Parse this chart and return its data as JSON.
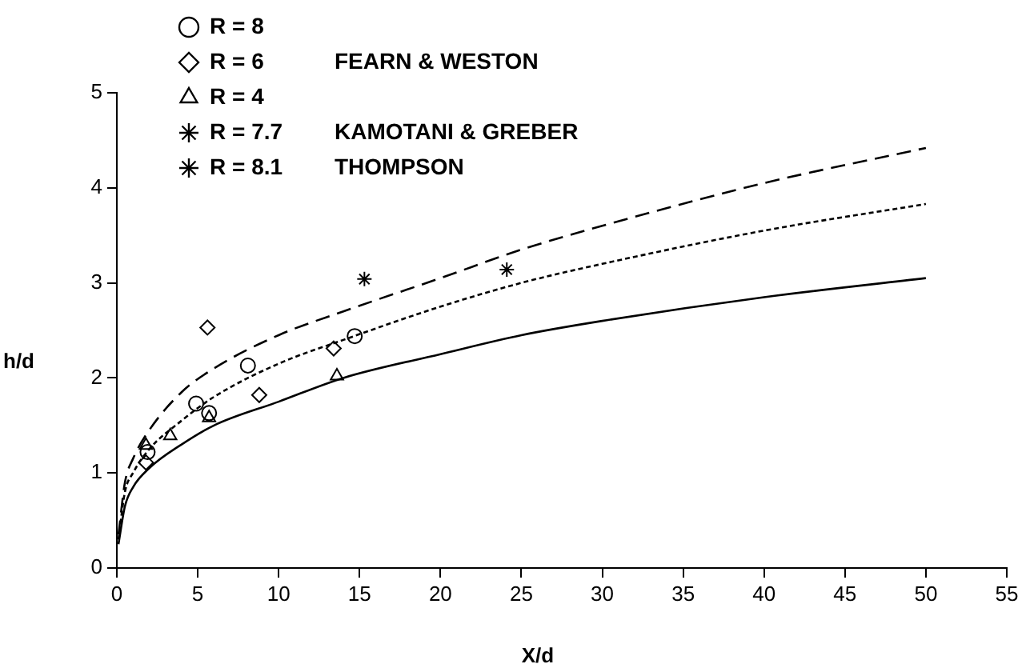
{
  "chart_data": {
    "type": "line",
    "xlabel": "X/d",
    "ylabel": "h/d",
    "xlim": [
      0,
      55
    ],
    "xticks": [
      0,
      5,
      10,
      15,
      20,
      25,
      30,
      35,
      40,
      45,
      50,
      55
    ],
    "ylim": [
      0,
      5
    ],
    "yticks": [
      0,
      1,
      2,
      3,
      4,
      5
    ],
    "grid": false,
    "legend": "top left",
    "annotations": [
      "FEARN & WESTON",
      "KAMOTANI & GREBER",
      "THOMPSON"
    ],
    "series": [
      {
        "color": "#000000",
        "line_style": "solid",
        "marker": "none",
        "x": [
          0.1,
          0.5,
          1,
          2,
          4,
          6,
          10,
          14,
          20,
          25,
          30,
          40,
          50
        ],
        "values": [
          0.25,
          0.65,
          0.85,
          1.05,
          1.3,
          1.5,
          1.75,
          2.0,
          2.25,
          2.45,
          2.6,
          2.85,
          3.05
        ]
      },
      {
        "color": "#000000",
        "line_style": "dotted",
        "marker": "none",
        "x": [
          0.1,
          0.5,
          1,
          2,
          4,
          6,
          10,
          14,
          20,
          25,
          30,
          40,
          50
        ],
        "values": [
          0.3,
          0.8,
          1.0,
          1.25,
          1.55,
          1.8,
          2.15,
          2.4,
          2.75,
          3.0,
          3.2,
          3.55,
          3.83
        ]
      },
      {
        "color": "#000000",
        "line_style": "dashed",
        "marker": "none",
        "x": [
          0.1,
          0.5,
          1,
          2,
          4,
          6,
          10,
          14,
          20,
          25,
          30,
          40,
          50
        ],
        "values": [
          0.35,
          0.9,
          1.15,
          1.45,
          1.85,
          2.1,
          2.45,
          2.7,
          3.05,
          3.35,
          3.6,
          4.05,
          4.42
        ]
      },
      {
        "type": "scatter",
        "name": "R = 8",
        "color": "#000000",
        "marker": "circle",
        "x": [
          1.9,
          4.9,
          5.7,
          8.1,
          14.7
        ],
        "values": [
          1.22,
          1.73,
          1.63,
          2.13,
          2.44
        ]
      },
      {
        "type": "scatter",
        "name": "R = 6",
        "color": "#000000",
        "marker": "diamond",
        "x": [
          1.8,
          5.6,
          8.8,
          13.4
        ],
        "values": [
          1.11,
          2.53,
          1.82,
          2.31
        ]
      },
      {
        "type": "scatter",
        "name": "R = 4",
        "color": "#000000",
        "marker": "triangle",
        "x": [
          1.8,
          3.3,
          5.7,
          13.6
        ],
        "values": [
          1.29,
          1.39,
          1.58,
          2.02
        ]
      },
      {
        "type": "scatter",
        "name": "R = 7.7",
        "color": "#000000",
        "marker": "cross",
        "x": [
          15.3
        ],
        "values": [
          3.04
        ]
      },
      {
        "type": "scatter",
        "name": "R = 8.1",
        "color": "#000000",
        "marker": "cross",
        "x": [
          24.1
        ],
        "values": [
          3.14
        ]
      }
    ]
  }
}
